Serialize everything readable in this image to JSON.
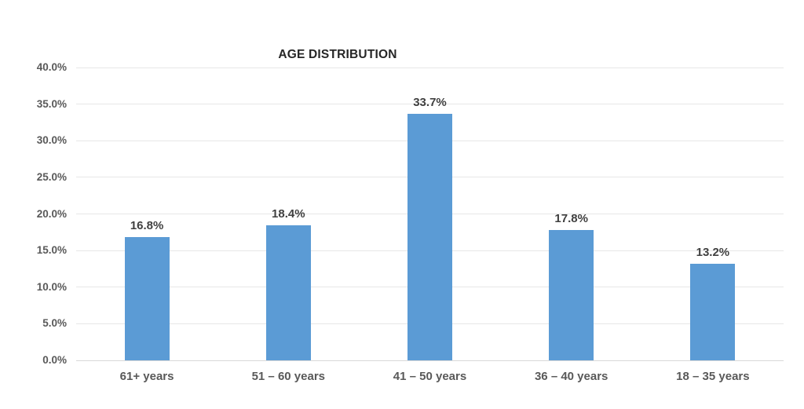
{
  "chart_data": {
    "type": "bar",
    "title": "AGE DISTRIBUTION",
    "categories": [
      "61+ years",
      "51 – 60 years",
      "41 – 50 years",
      "36 – 40 years",
      "18 – 35 years"
    ],
    "values": [
      16.8,
      18.4,
      33.7,
      17.8,
      13.2
    ],
    "data_labels": [
      "16.8%",
      "18.4%",
      "33.7%",
      "17.8%",
      "13.2%"
    ],
    "xlabel": "",
    "ylabel": "",
    "ylim": [
      0,
      40
    ],
    "ytick_step": 5,
    "ytick_labels": [
      "0.0%",
      "5.0%",
      "10.0%",
      "15.0%",
      "20.0%",
      "25.0%",
      "30.0%",
      "35.0%",
      "40.0%"
    ],
    "grid": true,
    "legend": false,
    "colors": {
      "bar": "#5b9bd5",
      "gridline": "#e7e7e7",
      "axis_line": "#d9d9d9",
      "axis_labels": "#595959",
      "data_labels": "#404040",
      "title": "#262626",
      "background": "#ffffff"
    }
  }
}
